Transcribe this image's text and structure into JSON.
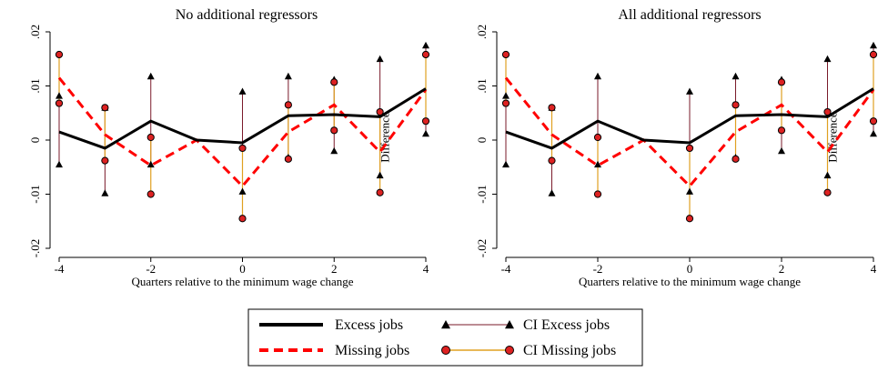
{
  "chart_data": [
    {
      "type": "line",
      "title": "No additional regressors",
      "xlabel": "Quarters relative to the minimum wage change",
      "ylabel": "Difference",
      "xlim": [
        -4,
        4
      ],
      "ylim": [
        -0.02,
        0.02
      ],
      "x_ticks": [
        "-4",
        "-2",
        "0",
        "2",
        "4"
      ],
      "y_ticks": [
        "-.02",
        "-.01",
        "0",
        ".01",
        ".02"
      ],
      "x": [
        -4,
        -3,
        -2,
        -1,
        0,
        1,
        2,
        3,
        4
      ],
      "series": [
        {
          "name": "Excess jobs",
          "values": [
            0.0015,
            -0.0015,
            0.0035,
            0.0,
            -0.0005,
            0.0045,
            0.0047,
            0.0043,
            0.0095
          ]
        },
        {
          "name": "Missing jobs",
          "values": [
            0.0115,
            0.001,
            -0.0047,
            0.0,
            -0.0085,
            0.0015,
            0.0065,
            -0.0022,
            0.0093
          ]
        }
      ],
      "ci": [
        {
          "name": "CI Excess jobs",
          "low": [
            -0.0045,
            -0.0098,
            -0.0045,
            0.0,
            -0.0095,
            -0.0032,
            -0.002,
            -0.0065,
            0.0012
          ],
          "high": [
            0.0082,
            0.006,
            0.0118,
            0.0,
            0.009,
            0.0118,
            0.0112,
            0.015,
            0.0175
          ]
        },
        {
          "name": "CI Missing jobs",
          "low": [
            0.0068,
            -0.0038,
            -0.01,
            0.0,
            -0.0145,
            -0.0035,
            0.0018,
            -0.0097,
            0.0035
          ],
          "high": [
            0.0158,
            0.006,
            0.0005,
            0.0,
            -0.0015,
            0.0065,
            0.0107,
            0.0052,
            0.0158
          ]
        }
      ]
    },
    {
      "type": "line",
      "title": "All additional regressors",
      "xlabel": "Quarters relative to the minimum wage change",
      "ylabel": "Difference",
      "xlim": [
        -4,
        4
      ],
      "ylim": [
        -0.02,
        0.02
      ],
      "x_ticks": [
        "-4",
        "-2",
        "0",
        "2",
        "4"
      ],
      "y_ticks": [
        "-.02",
        "-.01",
        "0",
        ".01",
        ".02"
      ],
      "x": [
        -4,
        -3,
        -2,
        -1,
        0,
        1,
        2,
        3,
        4
      ],
      "series": [
        {
          "name": "Excess jobs",
          "values": [
            0.0015,
            -0.0015,
            0.0035,
            0.0,
            -0.0005,
            0.0045,
            0.0047,
            0.0043,
            0.0095
          ]
        },
        {
          "name": "Missing jobs",
          "values": [
            0.0115,
            0.001,
            -0.0047,
            0.0,
            -0.0085,
            0.0015,
            0.0065,
            -0.0022,
            0.0093
          ]
        }
      ],
      "ci": [
        {
          "name": "CI Excess jobs",
          "low": [
            -0.0045,
            -0.0098,
            -0.0045,
            0.0,
            -0.0095,
            -0.0032,
            -0.002,
            -0.0065,
            0.0012
          ],
          "high": [
            0.0082,
            0.006,
            0.0118,
            0.0,
            0.009,
            0.0118,
            0.0112,
            0.015,
            0.0175
          ]
        },
        {
          "name": "CI Missing jobs",
          "low": [
            0.0068,
            -0.0038,
            -0.01,
            0.0,
            -0.0145,
            -0.0035,
            0.0018,
            -0.0097,
            0.0035
          ],
          "high": [
            0.0158,
            0.006,
            0.0005,
            0.0,
            -0.0015,
            0.0065,
            0.0107,
            0.0052,
            0.0158
          ]
        }
      ]
    }
  ],
  "legend": {
    "items": [
      {
        "label": "Excess jobs",
        "kind": "solid-line"
      },
      {
        "label": "CI Excess jobs",
        "kind": "ci-excess"
      },
      {
        "label": "Missing jobs",
        "kind": "dashed-line"
      },
      {
        "label": "CI Missing jobs",
        "kind": "ci-missing"
      }
    ]
  },
  "colors": {
    "excess_line": "#000000",
    "missing_line": "#ff0000",
    "ci_excess_stem": "#7a1a2a",
    "ci_missing_stem": "#e0a020",
    "ci_missing_marker": "#dd2222",
    "axis": "#000000"
  }
}
